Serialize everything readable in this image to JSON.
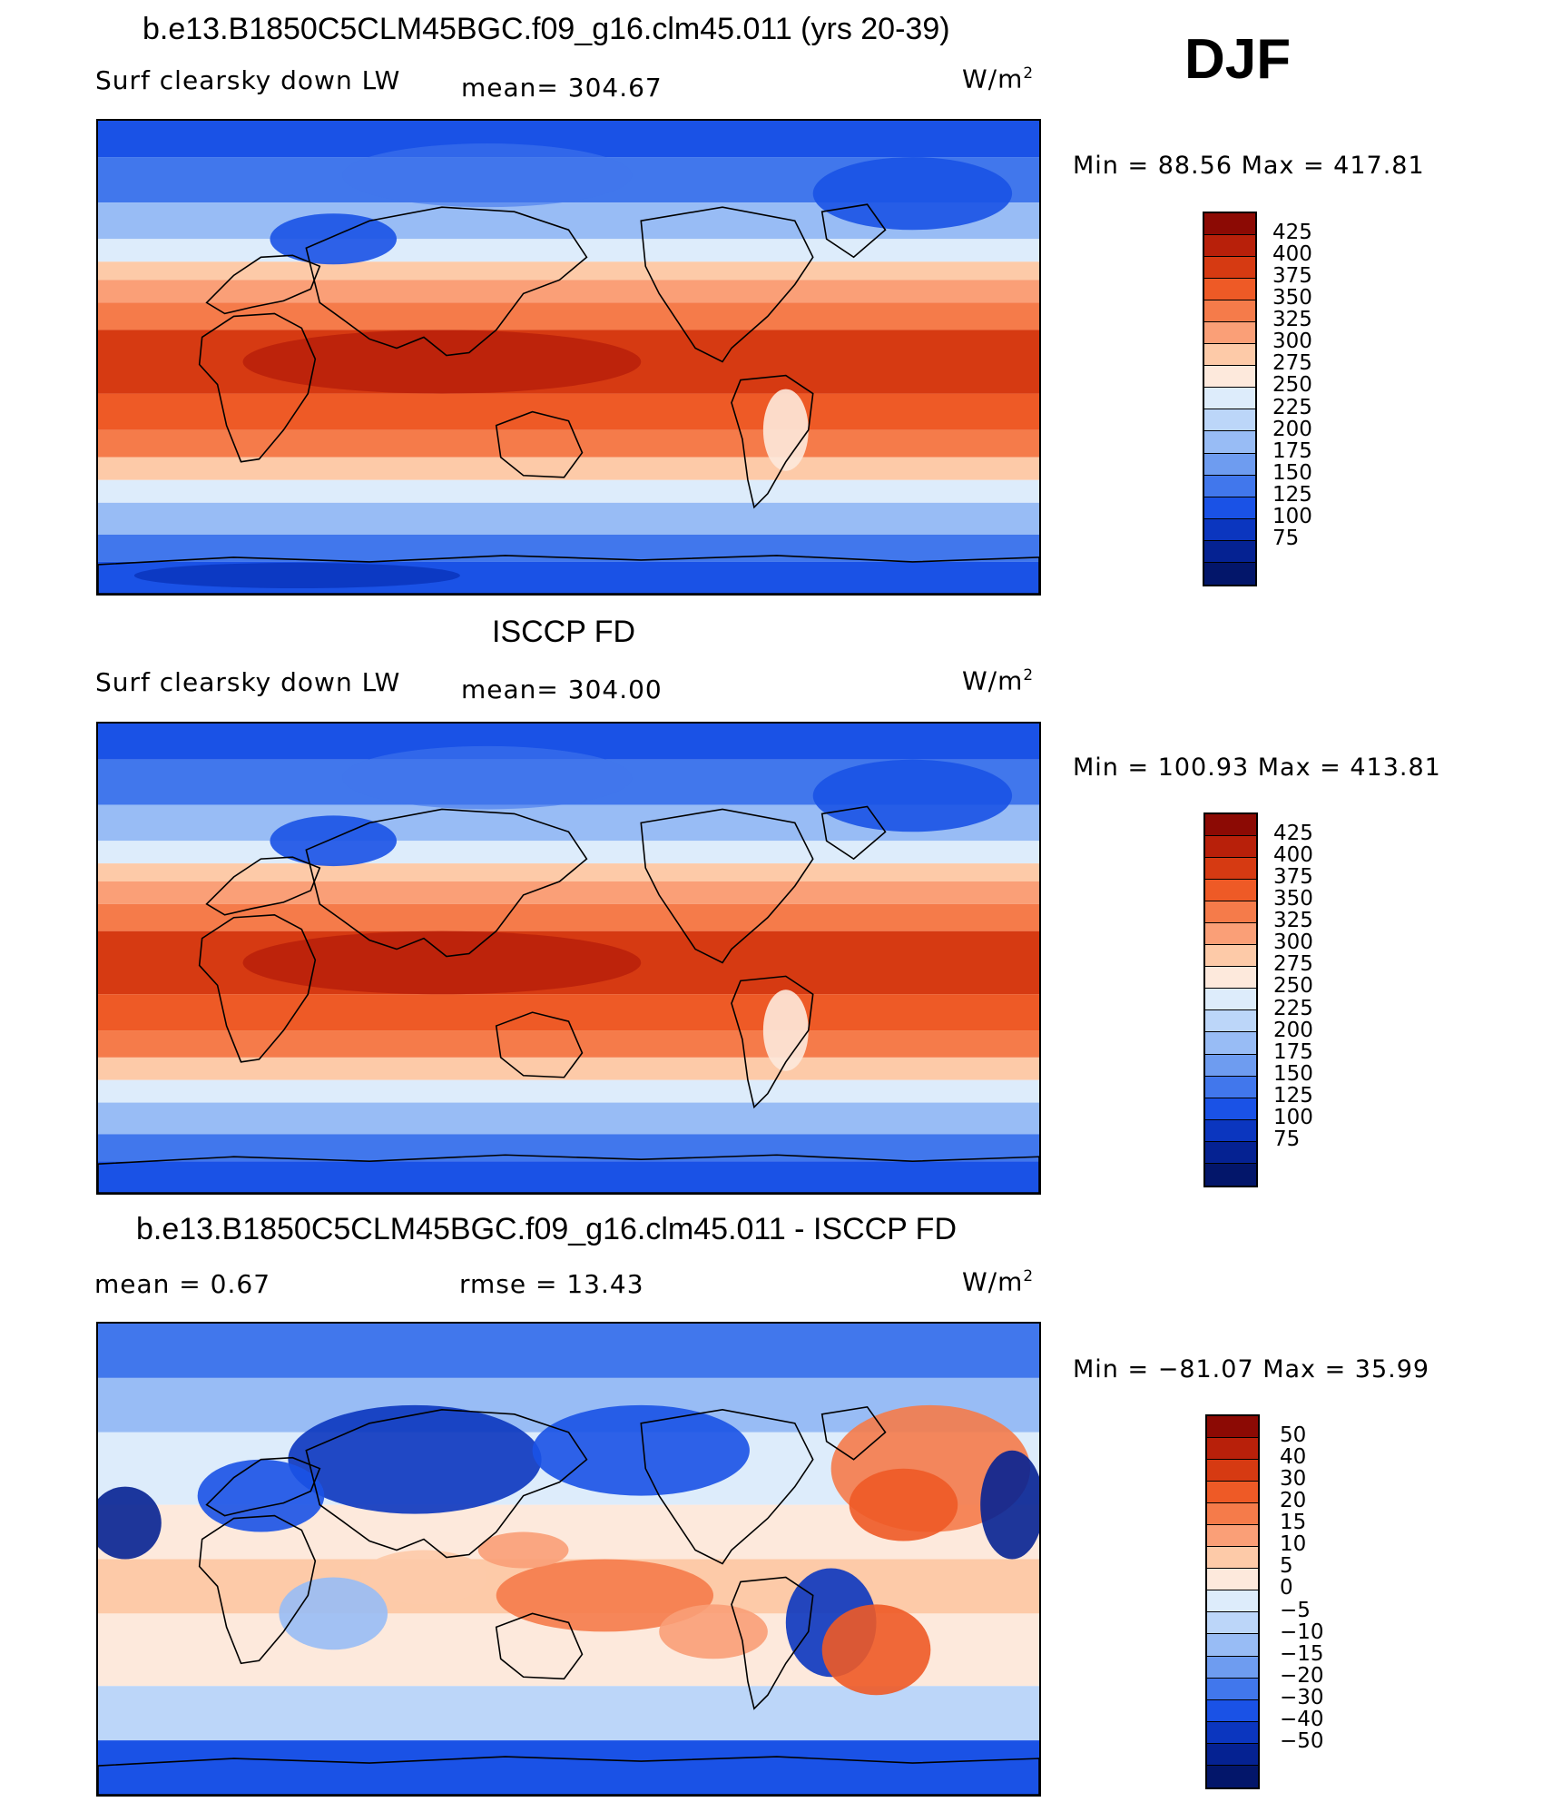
{
  "season": "DJF",
  "panels": [
    {
      "title": "b.e13.B1850C5CLM45BGC.f09_g16.clm45.011 (yrs 20-39)",
      "left_label": "Surf clearsky down LW",
      "center_label": "mean= 304.67",
      "units_base": "W/m",
      "units_sup": "2",
      "minmax": "Min =   88.56 Max = 417.81",
      "map_kind": "model",
      "colorbar": {
        "labels": [
          "425",
          "400",
          "375",
          "350",
          "325",
          "300",
          "275",
          "250",
          "225",
          "200",
          "175",
          "150",
          "125",
          "100",
          "75"
        ],
        "colors": [
          "#8c0a04",
          "#b8200a",
          "#d63a12",
          "#ee5a26",
          "#f57b4a",
          "#fa9f77",
          "#fdcaa8",
          "#fde9dc",
          "#ddecfb",
          "#bcd6f9",
          "#98bcf5",
          "#6e9cf0",
          "#4177ec",
          "#1a52e6",
          "#0b36bf",
          "#052292",
          "#03166a"
        ]
      }
    },
    {
      "title": "ISCCP FD",
      "left_label": "Surf clearsky down LW",
      "center_label": "mean= 304.00",
      "units_base": "W/m",
      "units_sup": "2",
      "minmax": "Min = 100.93 Max = 413.81",
      "map_kind": "obs",
      "colorbar": {
        "labels": [
          "425",
          "400",
          "375",
          "350",
          "325",
          "300",
          "275",
          "250",
          "225",
          "200",
          "175",
          "150",
          "125",
          "100",
          "75"
        ],
        "colors": [
          "#8c0a04",
          "#b8200a",
          "#d63a12",
          "#ee5a26",
          "#f57b4a",
          "#fa9f77",
          "#fdcaa8",
          "#fde9dc",
          "#ddecfb",
          "#bcd6f9",
          "#98bcf5",
          "#6e9cf0",
          "#4177ec",
          "#1a52e6",
          "#0b36bf",
          "#052292",
          "#03166a"
        ]
      }
    },
    {
      "title": "b.e13.B1850C5CLM45BGC.f09_g16.clm45.011 - ISCCP FD",
      "left_label": "mean =    0.67",
      "center_label": "rmse =   13.43",
      "units_base": "W/m",
      "units_sup": "2",
      "minmax": "Min = −81.07 Max =   35.99",
      "map_kind": "diff",
      "colorbar": {
        "labels": [
          "50",
          "40",
          "30",
          "20",
          "15",
          "10",
          "5",
          "0",
          "−5",
          "−10",
          "−15",
          "−20",
          "−30",
          "−40",
          "−50"
        ],
        "colors": [
          "#8c0a04",
          "#b8200a",
          "#d63a12",
          "#ee5a26",
          "#f57b4a",
          "#fa9f77",
          "#fdcaa8",
          "#fde9dc",
          "#ddecfb",
          "#bcd6f9",
          "#98bcf5",
          "#6e9cf0",
          "#4177ec",
          "#1a52e6",
          "#0b36bf",
          "#052292",
          "#03166a"
        ]
      }
    }
  ]
}
